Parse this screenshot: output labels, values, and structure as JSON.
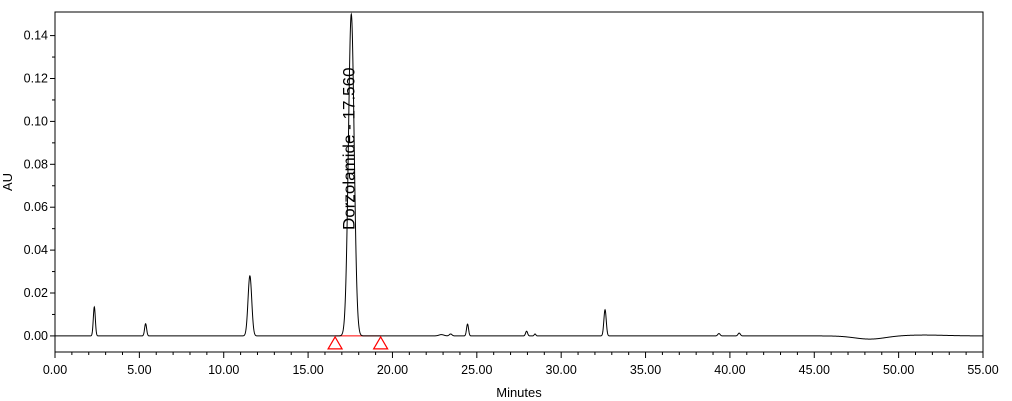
{
  "chart_data": {
    "type": "line",
    "title": "",
    "xlabel": "Minutes",
    "ylabel": "AU",
    "xlim": [
      0,
      55
    ],
    "ylim": [
      -0.0075,
      0.151
    ],
    "x_ticks": [
      "0.00",
      "5.00",
      "10.00",
      "15.00",
      "20.00",
      "25.00",
      "30.00",
      "35.00",
      "40.00",
      "45.00",
      "50.00",
      "55.00"
    ],
    "y_ticks": [
      "0.00",
      "0.02",
      "0.04",
      "0.06",
      "0.08",
      "0.10",
      "0.12",
      "0.14"
    ],
    "grid": false,
    "legend": "none",
    "trace_color": "#000000",
    "marker_color": "#ff0000",
    "series": [
      {
        "peaks": [
          {
            "rt": 2.33,
            "height": 0.0135,
            "sigma": 0.06
          },
          {
            "rt": 5.37,
            "height": 0.0057,
            "sigma": 0.06
          },
          {
            "rt": 11.55,
            "height": 0.028,
            "sigma": 0.11
          },
          {
            "rt": 17.56,
            "height": 0.15,
            "sigma": 0.17
          },
          {
            "rt": 22.9,
            "height": 0.0006,
            "sigma": 0.15
          },
          {
            "rt": 23.45,
            "height": 0.0009,
            "sigma": 0.08
          },
          {
            "rt": 24.45,
            "height": 0.0055,
            "sigma": 0.06
          },
          {
            "rt": 27.95,
            "height": 0.0022,
            "sigma": 0.06
          },
          {
            "rt": 28.45,
            "height": 0.0009,
            "sigma": 0.05
          },
          {
            "rt": 32.6,
            "height": 0.0122,
            "sigma": 0.07
          },
          {
            "rt": 39.35,
            "height": 0.0011,
            "sigma": 0.07
          },
          {
            "rt": 40.55,
            "height": 0.0013,
            "sigma": 0.07
          },
          {
            "rt": 48.3,
            "height": -0.0015,
            "sigma": 0.9
          },
          {
            "rt": 51.5,
            "height": 0.0004,
            "sigma": 1.3
          }
        ]
      }
    ],
    "annotations": [
      {
        "text": "Dorzolamide - 17.560",
        "x": 17.56
      }
    ],
    "integration": {
      "start": 16.6,
      "end": 19.3,
      "baseline_y": 0.0
    }
  }
}
